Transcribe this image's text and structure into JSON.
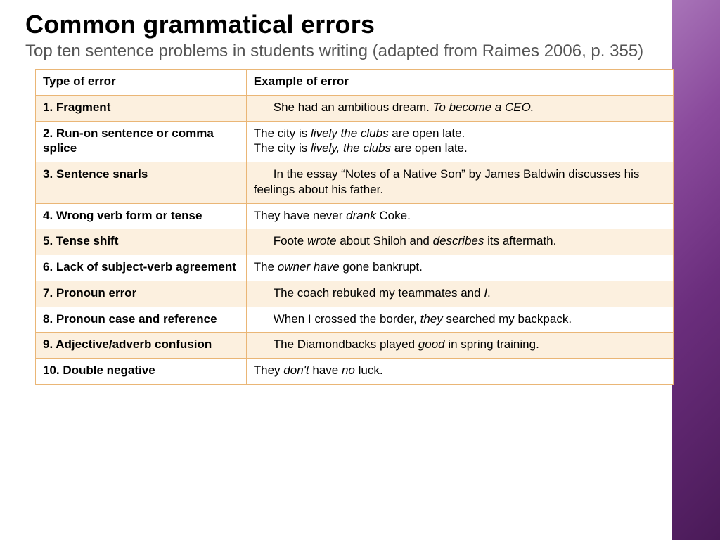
{
  "title": "Common grammatical errors",
  "subtitle": "Top ten sentence problems in students writing (adapted from Raimes 2006, p. 355)",
  "columns": {
    "type": "Type of error",
    "example": "Example of error"
  },
  "rows": [
    {
      "label": "1. Fragment",
      "indent": true,
      "parts": [
        {
          "t": "She had an ambitious dream. "
        },
        {
          "t": "To become a CEO.",
          "i": true
        }
      ],
      "shaded": true
    },
    {
      "label": "2. Run-on sentence or comma splice",
      "indent": false,
      "parts": [
        {
          "t": "The city is "
        },
        {
          "t": "lively the clubs",
          "i": true
        },
        {
          "t": " are open late."
        },
        {
          "br": true
        },
        {
          "t": "The city is "
        },
        {
          "t": "lively, the clubs",
          "i": true
        },
        {
          "t": " are open late."
        }
      ],
      "shaded": false
    },
    {
      "label": "3. Sentence snarls",
      "indent": true,
      "parts": [
        {
          "t": "In the essay “Notes of a Native Son” by James Baldwin discusses his feelings about his father."
        }
      ],
      "shaded": true
    },
    {
      "label": "4. Wrong verb form or tense",
      "indent": false,
      "parts": [
        {
          "t": "They have never "
        },
        {
          "t": "drank",
          "i": true
        },
        {
          "t": " Coke."
        }
      ],
      "shaded": false
    },
    {
      "label": "5. Tense shift",
      "indent": true,
      "parts": [
        {
          "t": "Foote "
        },
        {
          "t": "wrote",
          "i": true
        },
        {
          "t": " about Shiloh and "
        },
        {
          "t": "describes",
          "i": true
        },
        {
          "t": " its aftermath."
        }
      ],
      "shaded": true
    },
    {
      "label": "6. Lack of subject-verb agreement",
      "indent": false,
      "parts": [
        {
          "t": "The "
        },
        {
          "t": "owner have",
          "i": true
        },
        {
          "t": " gone bankrupt."
        }
      ],
      "shaded": false
    },
    {
      "label": "7. Pronoun error",
      "indent": true,
      "parts": [
        {
          "t": "The coach rebuked my teammates and "
        },
        {
          "t": "I",
          "i": true
        },
        {
          "t": "."
        }
      ],
      "shaded": true
    },
    {
      "label": "8. Pronoun case and reference",
      "indent": true,
      "parts": [
        {
          "t": "When I crossed the border, "
        },
        {
          "t": "they",
          "i": true
        },
        {
          "t": " searched my backpack."
        }
      ],
      "shaded": false
    },
    {
      "label": "9. Adjective/adverb confusion",
      "indent": true,
      "parts": [
        {
          "t": "The Diamondbacks played "
        },
        {
          "t": "good",
          "i": true
        },
        {
          "t": " in spring training."
        }
      ],
      "shaded": true
    },
    {
      "label": "10. Double negative",
      "indent": false,
      "parts": [
        {
          "t": "They "
        },
        {
          "t": "don't",
          "i": true
        },
        {
          "t": " have "
        },
        {
          "t": "no",
          "i": true
        },
        {
          "t": " luck."
        }
      ],
      "shaded": false
    }
  ],
  "styles": {
    "border_color": "#eab676",
    "shaded_bg": "#fcf0df",
    "sidebar_gradient": [
      "#a874b8",
      "#8a4a9c",
      "#6b2e7d",
      "#4a1a58"
    ],
    "title_color": "#000000",
    "subtitle_color": "#555555",
    "font_body": "Trebuchet MS",
    "title_fontsize": 36,
    "subtitle_fontsize": 24,
    "cell_fontsize": 17
  }
}
